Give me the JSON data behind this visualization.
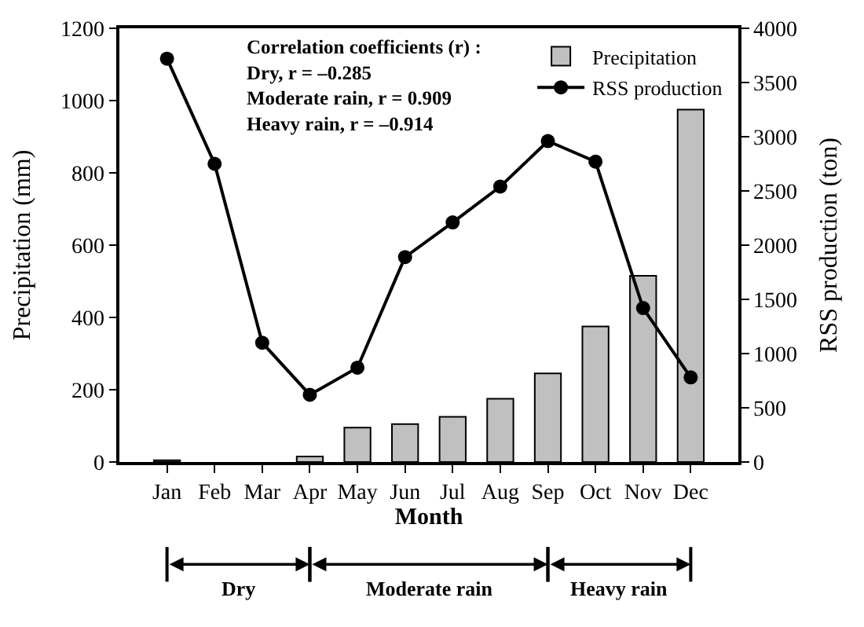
{
  "chart_data": {
    "type": "bar",
    "xlabel": "Month",
    "ylabel": "Precipitation (mm)",
    "y2label": "RSS production (ton)",
    "categories": [
      "Jan",
      "Feb",
      "Mar",
      "Apr",
      "May",
      "Jun",
      "Jul",
      "Aug",
      "Sep",
      "Oct",
      "Nov",
      "Dec"
    ],
    "series": [
      {
        "name": "Precipitation",
        "color": "#c0c0c0",
        "values": [
          5,
          0,
          0,
          15,
          95,
          105,
          125,
          175,
          245,
          375,
          515,
          975
        ]
      },
      {
        "name": "RSS production",
        "type": "line",
        "axis": "y2",
        "color": "#000000",
        "marker": "circle",
        "values": [
          3720,
          2750,
          1100,
          620,
          870,
          1890,
          2210,
          2540,
          2960,
          2770,
          1420,
          780
        ]
      }
    ],
    "ylim": [
      0,
      1200
    ],
    "yticks": [
      0,
      200,
      400,
      600,
      800,
      1000,
      1200
    ],
    "y2lim": [
      0,
      4000
    ],
    "y2ticks": [
      0,
      500,
      1000,
      1500,
      2000,
      2500,
      3000,
      3500,
      4000
    ],
    "annotations": [
      "Correlation coefficients (r) :\nDry, r = –0.285\nModerate rain, r = 0.909\nHeavy rain, r = –0.914",
      "Dry",
      "Moderate rain",
      "Heavy rain"
    ],
    "legend": "top right"
  }
}
